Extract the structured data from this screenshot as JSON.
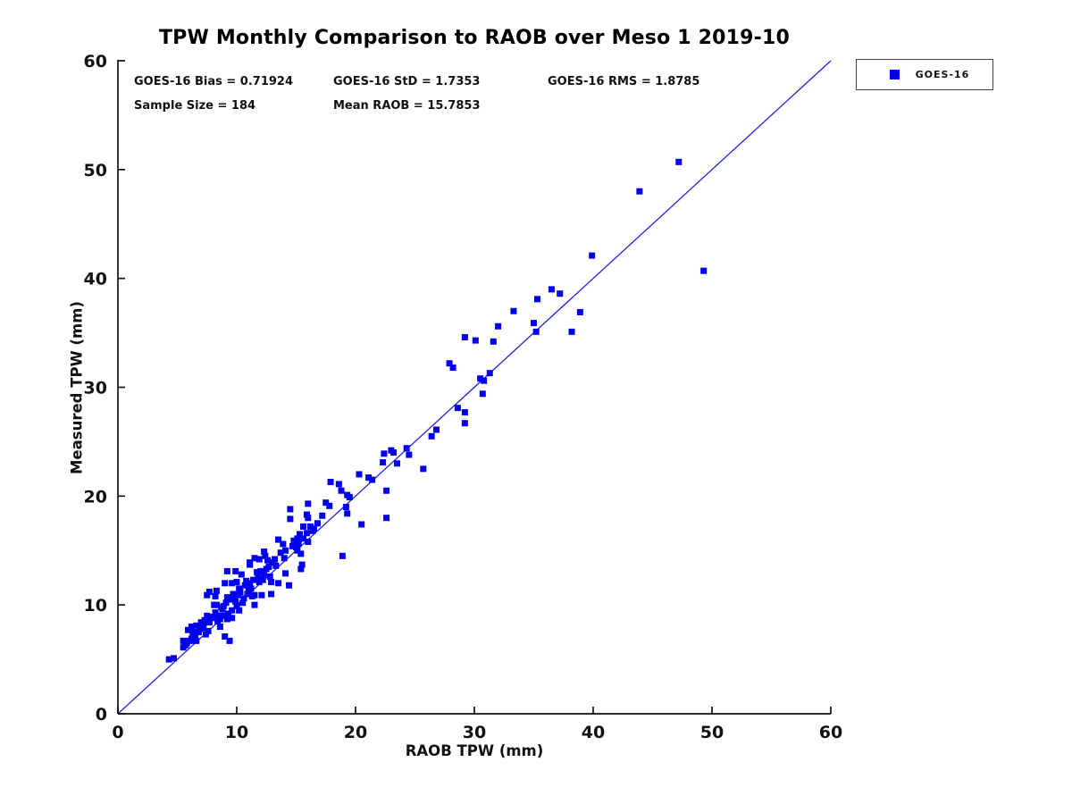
{
  "chart_data": {
    "type": "scatter",
    "title": "TPW Monthly Comparison to RAOB over Meso 1 2019-10",
    "xlabel": "RAOB TPW (mm)",
    "ylabel": "Measured TPW (mm)",
    "xlim": [
      0,
      60
    ],
    "ylim": [
      0,
      60
    ],
    "xticks": [
      0,
      10,
      20,
      30,
      40,
      50,
      60
    ],
    "yticks": [
      0,
      10,
      20,
      30,
      40,
      50,
      60
    ],
    "grid": false,
    "annotations": [
      "GOES-16 Bias = 0.71924",
      "GOES-16 StD = 1.7353",
      "GOES-16 RMS = 1.8785",
      "Sample Size = 184",
      "Mean RAOB = 15.7853"
    ],
    "legend": {
      "position": "top-right-outside"
    },
    "reference_line": {
      "from": [
        0,
        0
      ],
      "to": [
        60,
        60
      ],
      "color": "#2222dd",
      "style": "solid"
    },
    "series": [
      {
        "name": "GOES-16",
        "marker": "square",
        "color": "#0000ee",
        "points": [
          [
            4.3,
            5.0
          ],
          [
            4.7,
            5.1
          ],
          [
            5.5,
            6.1
          ],
          [
            5.7,
            6.3
          ],
          [
            5.5,
            6.7
          ],
          [
            5.9,
            6.7
          ],
          [
            6.1,
            6.7
          ],
          [
            6.6,
            6.7
          ],
          [
            6.2,
            6.9
          ],
          [
            6.4,
            7.5
          ],
          [
            6.8,
            7.5
          ],
          [
            7.4,
            7.3
          ],
          [
            5.9,
            7.7
          ],
          [
            6.2,
            8.0
          ],
          [
            6.6,
            8.1
          ],
          [
            7.2,
            7.9
          ],
          [
            7.0,
            8.4
          ],
          [
            7.2,
            8.3
          ],
          [
            7.7,
            8.4
          ],
          [
            7.5,
            9.0
          ],
          [
            8.0,
            8.8
          ],
          [
            8.6,
            8.7
          ],
          [
            9.2,
            8.7
          ],
          [
            9.0,
            9.0
          ],
          [
            9.6,
            8.8
          ],
          [
            9.6,
            9.5
          ],
          [
            10.2,
            9.5
          ],
          [
            8.7,
            9.8
          ],
          [
            8.1,
            10.0
          ],
          [
            8.3,
            10.0
          ],
          [
            9.0,
            7.1
          ],
          [
            9.4,
            6.7
          ],
          [
            7.5,
            10.9
          ],
          [
            8.2,
            10.8
          ],
          [
            9.2,
            10.7
          ],
          [
            9.8,
            10.8
          ],
          [
            10.6,
            10.6
          ],
          [
            11.3,
            10.8
          ],
          [
            10.1,
            10.9
          ],
          [
            10.9,
            11.0
          ],
          [
            11.5,
            10.9
          ],
          [
            12.1,
            10.9
          ],
          [
            12.9,
            11.0
          ],
          [
            11.5,
            10.0
          ],
          [
            8.3,
            11.3
          ],
          [
            7.7,
            11.2
          ],
          [
            9.0,
            12.0
          ],
          [
            9.6,
            12.0
          ],
          [
            10.0,
            12.1
          ],
          [
            10.4,
            12.8
          ],
          [
            9.2,
            13.1
          ],
          [
            9.9,
            13.1
          ],
          [
            11.1,
            12.0
          ],
          [
            11.9,
            12.1
          ],
          [
            12.3,
            12.8
          ],
          [
            12.9,
            12.1
          ],
          [
            13.5,
            12.0
          ],
          [
            14.4,
            11.8
          ],
          [
            14.1,
            12.9
          ],
          [
            11.1,
            13.7
          ],
          [
            11.5,
            14.3
          ],
          [
            11.9,
            14.2
          ],
          [
            12.6,
            14.1
          ],
          [
            13.0,
            13.9
          ],
          [
            11.1,
            13.9
          ],
          [
            12.3,
            14.9
          ],
          [
            12.4,
            14.5
          ],
          [
            14.1,
            15.0
          ],
          [
            13.5,
            16.0
          ],
          [
            13.9,
            15.6
          ],
          [
            14.7,
            15.4
          ],
          [
            15.4,
            14.7
          ],
          [
            15.4,
            13.3
          ],
          [
            15.9,
            16.6
          ],
          [
            16.4,
            16.8
          ],
          [
            14.5,
            18.8
          ],
          [
            14.5,
            17.9
          ],
          [
            15.1,
            16.1
          ],
          [
            15.6,
            16.1
          ],
          [
            15.3,
            16.5
          ],
          [
            16.0,
            15.8
          ],
          [
            15.0,
            15.3
          ],
          [
            15.1,
            15.0
          ],
          [
            15.5,
            13.7
          ],
          [
            16.0,
            19.3
          ],
          [
            15.9,
            18.3
          ],
          [
            16.0,
            18.0
          ],
          [
            15.6,
            17.2
          ],
          [
            16.2,
            17.2
          ],
          [
            16.5,
            17.0
          ],
          [
            17.9,
            21.3
          ],
          [
            18.6,
            21.1
          ],
          [
            18.8,
            20.5
          ],
          [
            19.3,
            20.1
          ],
          [
            19.5,
            19.9
          ],
          [
            17.5,
            19.4
          ],
          [
            17.8,
            19.1
          ],
          [
            19.2,
            19.0
          ],
          [
            19.3,
            18.4
          ],
          [
            18.9,
            14.5
          ],
          [
            20.3,
            22.0
          ],
          [
            21.1,
            21.7
          ],
          [
            21.4,
            21.5
          ],
          [
            22.6,
            20.5
          ],
          [
            22.6,
            18.0
          ],
          [
            20.5,
            17.4
          ],
          [
            22.4,
            23.9
          ],
          [
            23.0,
            24.2
          ],
          [
            23.2,
            24.0
          ],
          [
            22.3,
            23.1
          ],
          [
            23.5,
            23.0
          ],
          [
            24.3,
            24.4
          ],
          [
            24.5,
            23.8
          ],
          [
            25.7,
            22.5
          ],
          [
            26.8,
            26.1
          ],
          [
            26.4,
            25.5
          ],
          [
            27.9,
            32.2
          ],
          [
            28.2,
            31.8
          ],
          [
            28.6,
            28.1
          ],
          [
            29.2,
            27.7
          ],
          [
            29.2,
            26.7
          ],
          [
            30.7,
            29.4
          ],
          [
            30.5,
            30.8
          ],
          [
            30.8,
            30.6
          ],
          [
            31.3,
            31.3
          ],
          [
            29.2,
            34.6
          ],
          [
            30.1,
            34.3
          ],
          [
            31.6,
            34.2
          ],
          [
            32.0,
            35.6
          ],
          [
            33.3,
            37.0
          ],
          [
            35.0,
            35.9
          ],
          [
            35.2,
            35.1
          ],
          [
            38.2,
            35.1
          ],
          [
            35.3,
            38.1
          ],
          [
            36.5,
            39.0
          ],
          [
            37.2,
            38.6
          ],
          [
            38.9,
            36.9
          ],
          [
            39.9,
            42.1
          ],
          [
            43.9,
            48.0
          ],
          [
            47.2,
            50.7
          ],
          [
            49.3,
            40.7
          ],
          [
            7.1,
            8.2
          ],
          [
            8.5,
            9.0
          ],
          [
            9.3,
            9.2
          ],
          [
            10.3,
            11.2
          ],
          [
            11.2,
            11.5
          ],
          [
            6.9,
            7.8
          ],
          [
            8.8,
            9.6
          ],
          [
            9.1,
            10.2
          ],
          [
            10.7,
            11.8
          ],
          [
            11.8,
            12.5
          ],
          [
            12.0,
            13.1
          ],
          [
            7.8,
            8.9
          ],
          [
            8.4,
            8.5
          ],
          [
            6.5,
            7.2
          ],
          [
            5.8,
            6.5
          ],
          [
            7.3,
            8.6
          ],
          [
            9.5,
            10.5
          ],
          [
            10.8,
            12.2
          ],
          [
            12.7,
            13.5
          ],
          [
            13.2,
            14.2
          ],
          [
            8.9,
            9.9
          ],
          [
            9.7,
            11.0
          ],
          [
            10.5,
            10.2
          ],
          [
            11.4,
            12.3
          ],
          [
            12.2,
            12.3
          ],
          [
            6.3,
            7.3
          ],
          [
            7.6,
            7.6
          ],
          [
            8.2,
            9.3
          ],
          [
            9.9,
            10.3
          ],
          [
            10.2,
            11.5
          ],
          [
            11.7,
            13.0
          ],
          [
            12.5,
            13.3
          ],
          [
            13.3,
            13.6
          ],
          [
            14.0,
            14.3
          ],
          [
            14.8,
            15.9
          ],
          [
            15.2,
            15.6
          ],
          [
            16.8,
            17.5
          ],
          [
            17.2,
            18.2
          ],
          [
            13.7,
            14.8
          ],
          [
            12.8,
            12.6
          ],
          [
            11.0,
            11.3
          ],
          [
            10.0,
            9.9
          ],
          [
            8.6,
            8.0
          ]
        ]
      }
    ]
  },
  "colors": {
    "marker": "#0000ee",
    "reference_line": "#2222dd",
    "axis": "#111111",
    "text": "#111111",
    "background": "#ffffff"
  }
}
